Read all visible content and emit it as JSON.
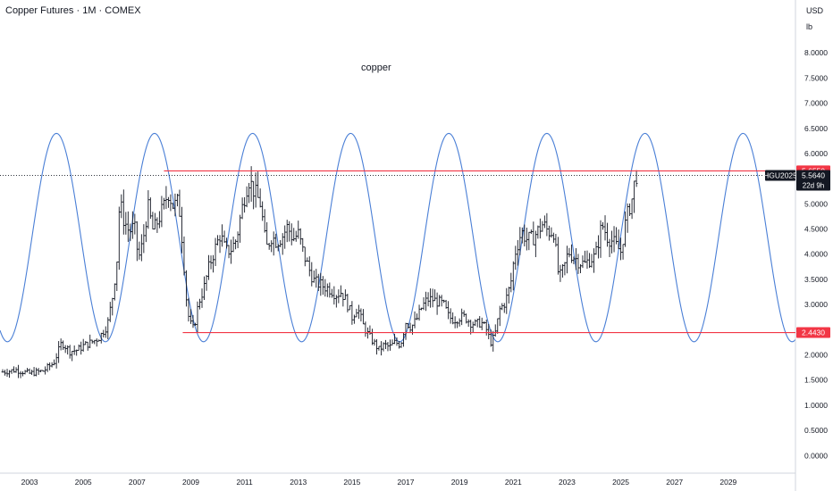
{
  "header": {
    "title": "Copper Futures · 1M · COMEX",
    "currency": "USD",
    "unit": "lb"
  },
  "colors": {
    "background": "#ffffff",
    "price": "#131722",
    "cycle": "#4a7fd6",
    "level": "#f23645",
    "label_dark": "#131722"
  },
  "chart_data": {
    "type": "ohlc-bar",
    "annotation": "copper",
    "xlim": [
      2001.9,
      2031.5
    ],
    "ylim": [
      -0.35,
      9.05
    ],
    "x_ticks": [
      {
        "value": 2003,
        "label": "2003"
      },
      {
        "value": 2005,
        "label": "2005"
      },
      {
        "value": 2007,
        "label": "2007"
      },
      {
        "value": 2009,
        "label": "2009"
      },
      {
        "value": 2011,
        "label": "2011"
      },
      {
        "value": 2013,
        "label": "2013"
      },
      {
        "value": 2015,
        "label": "2015"
      },
      {
        "value": 2017,
        "label": "2017"
      },
      {
        "value": 2019,
        "label": "2019"
      },
      {
        "value": 2021,
        "label": "2021"
      },
      {
        "value": 2023,
        "label": "2023"
      },
      {
        "value": 2025,
        "label": "2025"
      },
      {
        "value": 2027,
        "label": "2027"
      },
      {
        "value": 2029,
        "label": "2029"
      }
    ],
    "y_ticks": [
      "8.0000",
      "7.5000",
      "7.0000",
      "6.5000",
      "6.0000",
      "5.5000",
      "5.0000",
      "4.5000",
      "4.0000",
      "3.5000",
      "3.0000",
      "2.5000",
      "2.0000",
      "1.5000",
      "1.0000",
      "0.5000",
      "0.0000"
    ],
    "series": [
      {
        "type": "ohlc",
        "points": [
          [
            2002.0,
            1.66
          ],
          [
            2002.5,
            1.7
          ],
          [
            2003.0,
            1.63
          ],
          [
            2003.5,
            1.68
          ],
          [
            2003.9,
            1.84
          ],
          [
            2004.2,
            2.25
          ],
          [
            2004.5,
            2.07
          ],
          [
            2004.8,
            2.1
          ],
          [
            2005.0,
            2.18
          ],
          [
            2005.3,
            2.25
          ],
          [
            2005.6,
            2.35
          ],
          [
            2005.9,
            2.6
          ],
          [
            2006.1,
            3.2
          ],
          [
            2006.25,
            3.9
          ],
          [
            2006.35,
            5.05
          ],
          [
            2006.5,
            4.7
          ],
          [
            2006.7,
            4.45
          ],
          [
            2006.9,
            4.55
          ],
          [
            2007.05,
            3.9
          ],
          [
            2007.2,
            4.2
          ],
          [
            2007.4,
            4.95
          ],
          [
            2007.6,
            4.45
          ],
          [
            2007.8,
            4.7
          ],
          [
            2008.0,
            4.95
          ],
          [
            2008.15,
            5.25
          ],
          [
            2008.35,
            4.95
          ],
          [
            2008.55,
            5.05
          ],
          [
            2008.7,
            4.15
          ],
          [
            2008.85,
            3.0
          ],
          [
            2008.95,
            2.65
          ],
          [
            2009.1,
            2.5
          ],
          [
            2009.3,
            3.05
          ],
          [
            2009.5,
            3.35
          ],
          [
            2009.7,
            3.8
          ],
          [
            2009.9,
            4.1
          ],
          [
            2010.1,
            4.4
          ],
          [
            2010.3,
            4.05
          ],
          [
            2010.5,
            4.1
          ],
          [
            2010.7,
            4.3
          ],
          [
            2010.85,
            4.75
          ],
          [
            2011.0,
            5.15
          ],
          [
            2011.15,
            5.5
          ],
          [
            2011.4,
            5.2
          ],
          [
            2011.6,
            5.0
          ],
          [
            2011.8,
            4.1
          ],
          [
            2012.0,
            4.35
          ],
          [
            2012.2,
            4.25
          ],
          [
            2012.4,
            4.35
          ],
          [
            2012.6,
            4.55
          ],
          [
            2012.8,
            4.3
          ],
          [
            2013.0,
            4.4
          ],
          [
            2013.2,
            4.0
          ],
          [
            2013.4,
            3.7
          ],
          [
            2013.6,
            3.45
          ],
          [
            2013.8,
            3.4
          ],
          [
            2014.0,
            3.35
          ],
          [
            2014.2,
            3.3
          ],
          [
            2014.4,
            3.2
          ],
          [
            2014.6,
            3.25
          ],
          [
            2014.8,
            3.05
          ],
          [
            2015.0,
            2.75
          ],
          [
            2015.2,
            2.95
          ],
          [
            2015.4,
            2.6
          ],
          [
            2015.6,
            2.4
          ],
          [
            2015.8,
            2.25
          ],
          [
            2016.0,
            2.1
          ],
          [
            2016.2,
            2.2
          ],
          [
            2016.4,
            2.15
          ],
          [
            2016.6,
            2.25
          ],
          [
            2016.8,
            2.2
          ],
          [
            2017.0,
            2.65
          ],
          [
            2017.2,
            2.55
          ],
          [
            2017.4,
            2.7
          ],
          [
            2017.6,
            2.95
          ],
          [
            2017.8,
            3.1
          ],
          [
            2018.0,
            3.1
          ],
          [
            2018.2,
            3.05
          ],
          [
            2018.4,
            3.0
          ],
          [
            2018.6,
            2.75
          ],
          [
            2018.8,
            2.7
          ],
          [
            2019.0,
            2.75
          ],
          [
            2019.2,
            2.75
          ],
          [
            2019.4,
            2.65
          ],
          [
            2019.6,
            2.6
          ],
          [
            2019.8,
            2.65
          ],
          [
            2020.0,
            2.5
          ],
          [
            2020.15,
            2.25
          ],
          [
            2020.3,
            2.35
          ],
          [
            2020.5,
            2.9
          ],
          [
            2020.7,
            3.05
          ],
          [
            2020.9,
            3.4
          ],
          [
            2021.05,
            4.0
          ],
          [
            2021.3,
            4.45
          ],
          [
            2021.5,
            4.3
          ],
          [
            2021.7,
            4.3
          ],
          [
            2021.9,
            4.45
          ],
          [
            2022.1,
            4.6
          ],
          [
            2022.3,
            4.45
          ],
          [
            2022.5,
            4.45
          ],
          [
            2022.7,
            3.5
          ],
          [
            2022.9,
            3.75
          ],
          [
            2023.05,
            4.05
          ],
          [
            2023.25,
            3.95
          ],
          [
            2023.45,
            3.85
          ],
          [
            2023.65,
            3.8
          ],
          [
            2023.85,
            3.9
          ],
          [
            2024.05,
            3.95
          ],
          [
            2024.3,
            4.6
          ],
          [
            2024.5,
            4.35
          ],
          [
            2024.7,
            4.25
          ],
          [
            2024.85,
            4.15
          ],
          [
            2025.0,
            4.05
          ],
          [
            2025.15,
            4.55
          ],
          [
            2025.3,
            4.9
          ],
          [
            2025.45,
            5.15
          ],
          [
            2025.55,
            5.6
          ],
          [
            2025.65,
            5.56
          ]
        ]
      },
      {
        "name": "cycle",
        "type": "sine",
        "center": 4.33,
        "amplitude": 2.07,
        "period_years": 3.65,
        "peak_at": 2004.0
      }
    ],
    "levels": [
      {
        "value": 5.655,
        "label": "5.6550",
        "from_x": 2008.0
      },
      {
        "value": 2.443,
        "label": "2.4430",
        "from_x": 2008.7
      }
    ],
    "last_price": {
      "symbol": "HGU2025",
      "value": 5.564,
      "label": "5.5640",
      "countdown": "22d 9h"
    }
  }
}
